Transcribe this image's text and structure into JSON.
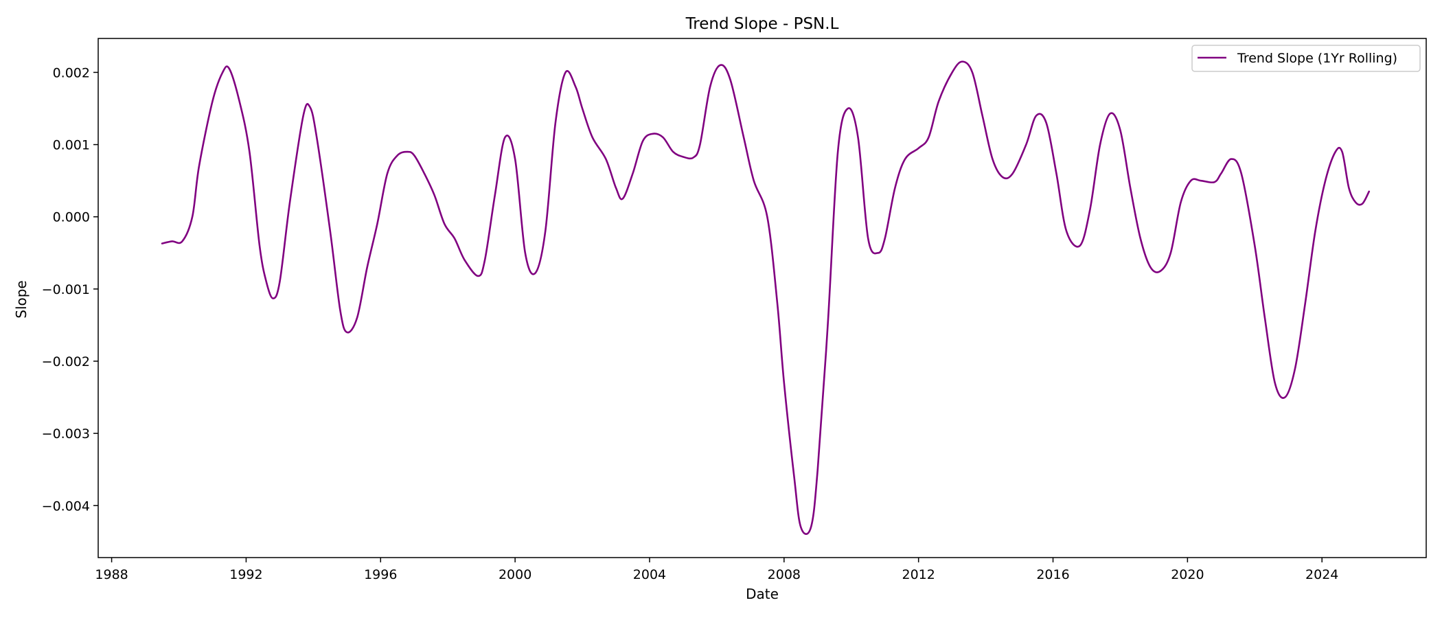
{
  "chart_data": {
    "type": "line",
    "title": "Trend Slope - PSN.L",
    "xlabel": "Date",
    "ylabel": "Slope",
    "xlim": [
      1987.6,
      2027.1
    ],
    "ylim": [
      -0.00472,
      0.00247
    ],
    "x_ticks": [
      1988,
      1992,
      1996,
      2000,
      2004,
      2008,
      2012,
      2016,
      2020,
      2024
    ],
    "x_tick_labels": [
      "1988",
      "1992",
      "1996",
      "2000",
      "2004",
      "2008",
      "2012",
      "2016",
      "2020",
      "2024"
    ],
    "y_ticks": [
      0.002,
      0.001,
      0.0,
      -0.001,
      -0.002,
      -0.003,
      -0.004
    ],
    "y_tick_labels": [
      "0.002",
      "0.001",
      "0.000",
      "−0.001",
      "−0.002",
      "−0.003",
      "−0.004"
    ],
    "grid": false,
    "legend_position": "top-right",
    "series": [
      {
        "name": "Trend Slope (1Yr Rolling)",
        "color": "#800080",
        "x": [
          1989.5,
          1989.8,
          1990.1,
          1990.4,
          1990.6,
          1991.0,
          1991.3,
          1991.5,
          1991.8,
          1992.1,
          1992.4,
          1992.6,
          1992.8,
          1993.0,
          1993.3,
          1993.7,
          1993.9,
          1994.1,
          1994.5,
          1994.8,
          1995.0,
          1995.3,
          1995.6,
          1995.9,
          1996.2,
          1996.5,
          1996.8,
          1997.0,
          1997.3,
          1997.6,
          1997.9,
          1998.2,
          1998.5,
          1998.9,
          1999.1,
          1999.4,
          1999.7,
          2000.0,
          2000.3,
          2000.6,
          2000.9,
          2001.2,
          2001.5,
          2001.8,
          2002.0,
          2002.3,
          2002.7,
          2003.0,
          2003.2,
          2003.5,
          2003.8,
          2004.1,
          2004.4,
          2004.7,
          2005.0,
          2005.3,
          2005.5,
          2005.8,
          2006.1,
          2006.4,
          2006.8,
          2007.1,
          2007.5,
          2007.8,
          2008.0,
          2008.3,
          2008.5,
          2008.8,
          2009.0,
          2009.3,
          2009.6,
          2009.9,
          2010.2,
          2010.5,
          2010.8,
          2011.0,
          2011.3,
          2011.6,
          2012.0,
          2012.3,
          2012.6,
          2013.0,
          2013.3,
          2013.6,
          2013.9,
          2014.2,
          2014.5,
          2014.8,
          2015.2,
          2015.5,
          2015.8,
          2016.1,
          2016.4,
          2016.8,
          2017.1,
          2017.4,
          2017.7,
          2018.0,
          2018.3,
          2018.6,
          2018.9,
          2019.2,
          2019.5,
          2019.8,
          2020.1,
          2020.4,
          2020.8,
          2021.0,
          2021.3,
          2021.6,
          2022.0,
          2022.3,
          2022.6,
          2022.9,
          2023.2,
          2023.5,
          2023.8,
          2024.1,
          2024.4,
          2024.6,
          2024.8,
          2025.0,
          2025.2,
          2025.4
        ],
        "values": [
          -0.00037,
          -0.00034,
          -0.00034,
          0.0,
          0.0007,
          0.0016,
          0.002,
          0.00205,
          0.0016,
          0.0009,
          -0.0004,
          -0.0009,
          -0.00113,
          -0.0009,
          0.0002,
          0.0014,
          0.00152,
          0.0011,
          -0.0002,
          -0.0013,
          -0.0016,
          -0.0014,
          -0.0007,
          -0.0001,
          0.0006,
          0.00085,
          0.0009,
          0.00085,
          0.0006,
          0.0003,
          -0.0001,
          -0.0003,
          -0.0006,
          -0.00082,
          -0.0006,
          0.0003,
          0.0011,
          0.0008,
          -0.0005,
          -0.00078,
          -0.0002,
          0.0013,
          0.002,
          0.0018,
          0.0015,
          0.0011,
          0.0008,
          0.0004,
          0.00025,
          0.0006,
          0.00105,
          0.00115,
          0.0011,
          0.0009,
          0.00083,
          0.00082,
          0.001,
          0.0018,
          0.0021,
          0.0019,
          0.0011,
          0.0005,
          0.0,
          -0.0012,
          -0.0023,
          -0.0036,
          -0.0043,
          -0.0043,
          -0.0035,
          -0.0015,
          0.0009,
          0.0015,
          0.0011,
          -0.0003,
          -0.0005,
          -0.0003,
          0.0004,
          0.0008,
          0.00095,
          0.0011,
          0.0016,
          0.002,
          0.00215,
          0.002,
          0.0014,
          0.0008,
          0.00055,
          0.0006,
          0.001,
          0.0014,
          0.0013,
          0.0006,
          -0.0002,
          -0.0004,
          0.0001,
          0.001,
          0.00143,
          0.0012,
          0.0004,
          -0.0003,
          -0.0007,
          -0.00075,
          -0.0005,
          0.0002,
          0.0005,
          0.0005,
          0.00048,
          0.0006,
          0.0008,
          0.0006,
          -0.0004,
          -0.0014,
          -0.0023,
          -0.0025,
          -0.0021,
          -0.0012,
          -0.0002,
          0.0005,
          0.0009,
          0.0009,
          0.0004,
          0.0002,
          0.00018,
          0.00035
        ]
      }
    ]
  }
}
